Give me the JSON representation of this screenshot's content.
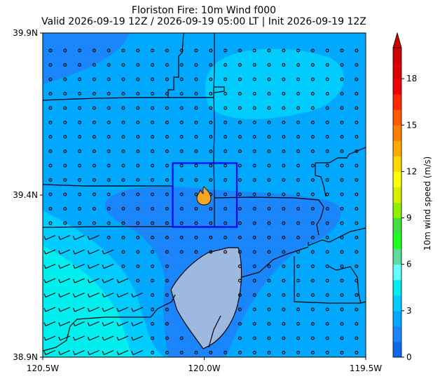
{
  "title": "Floriston Fire: 10m Wind f000",
  "subtitle": "Valid 2026-09-19 12Z / 2026-09-19 05:00 LT | Init 2026-09-19 12Z",
  "map": {
    "lon_range": [
      -120.5,
      -119.5
    ],
    "lat_range": [
      38.9,
      39.9
    ],
    "x_ticks": [
      "120.5W",
      "120.0W",
      "119.5W"
    ],
    "y_ticks": [
      "38.9N",
      "39.4N",
      "39.9N"
    ],
    "fire_marker": {
      "lon": -120.0,
      "lat": 39.4,
      "icon": "fire-icon",
      "color": "#f5a623"
    },
    "highlight_box": {
      "lon": [
        -120.09,
        -119.89
      ],
      "lat": [
        39.22,
        39.42
      ],
      "color": "#0000ff"
    },
    "lake_color": "#9db9e0",
    "wind_field": "calm-circles-with-sw-barbs-in-southwest"
  },
  "colorbar": {
    "label": "10m wind speed (m/s)",
    "ticks": [
      "0",
      "3",
      "6",
      "9",
      "12",
      "15",
      "18"
    ],
    "tick_values": [
      0,
      3,
      6,
      9,
      12,
      15,
      18
    ],
    "max": 20,
    "colors": [
      "#0a6ae8",
      "#1b85fb",
      "#00a8ff",
      "#00ccff",
      "#00eeee",
      "#66ffff",
      "#60d8a0",
      "#20ff20",
      "#40e040",
      "#90f000",
      "#d8f000",
      "#ffff00",
      "#ffd800",
      "#ffaa00",
      "#ff8000",
      "#ff5a00",
      "#ff2800",
      "#f00000",
      "#e00000",
      "#d00000"
    ]
  },
  "colors": {
    "speed_0_1": "#0a6ae8",
    "speed_1_2": "#1b85fb",
    "speed_2_3": "#00a8ff",
    "speed_3_4": "#00ccff",
    "speed_4_5": "#00eeee"
  }
}
